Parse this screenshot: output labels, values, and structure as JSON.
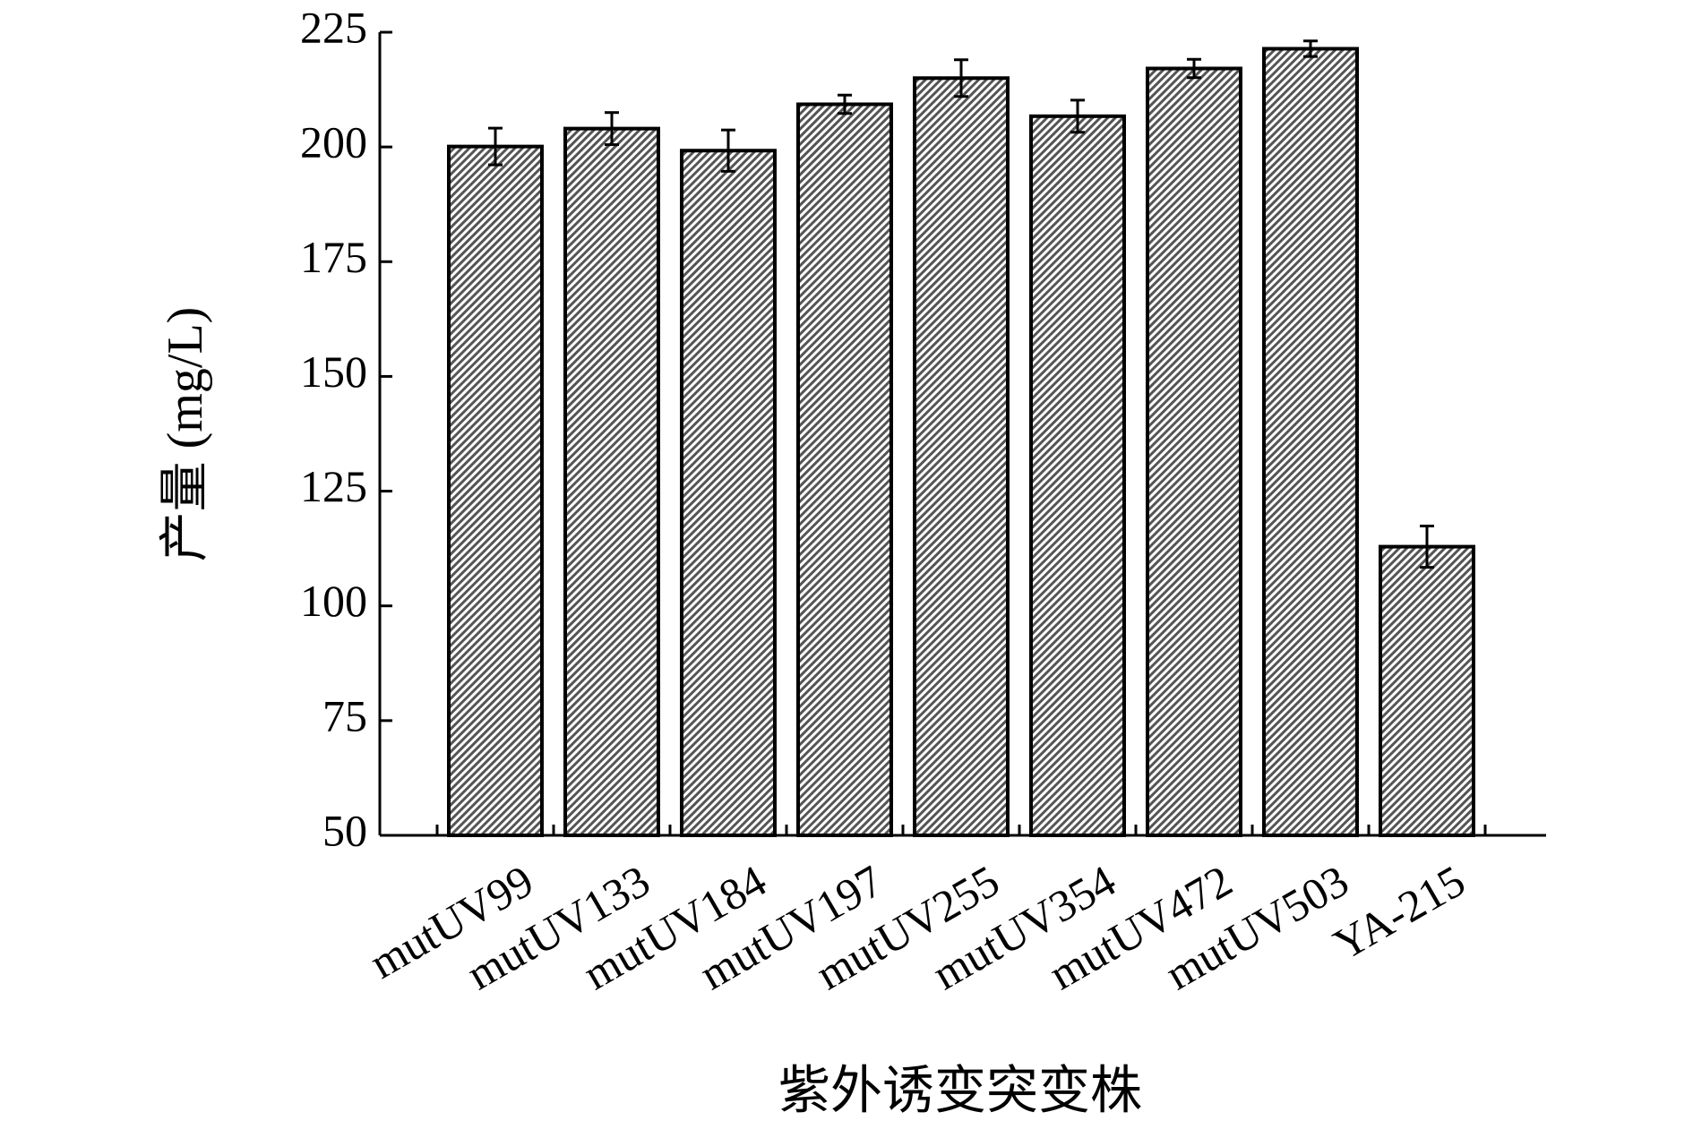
{
  "chart_data": {
    "type": "bar",
    "x_label": "紫外诱变突变株",
    "y_label": "产量 (mg/L)",
    "categories": [
      "mutUV99",
      "mutUV133",
      "mutUV184",
      "mutUV197",
      "mutUV255",
      "mutUV354",
      "mutUV472",
      "mutUV503",
      "YA-215"
    ],
    "values": [
      200.1,
      204,
      199.2,
      209.3,
      215,
      206.7,
      217.1,
      221.4,
      112.9
    ],
    "errors": [
      4,
      3.5,
      4.5,
      2,
      4,
      3.5,
      2,
      1.7,
      4.5
    ],
    "color": "#555555",
    "ylim": [
      50,
      225
    ],
    "yticks": [
      50,
      75,
      100,
      125,
      150,
      175,
      200,
      225
    ],
    "grid": false
  }
}
